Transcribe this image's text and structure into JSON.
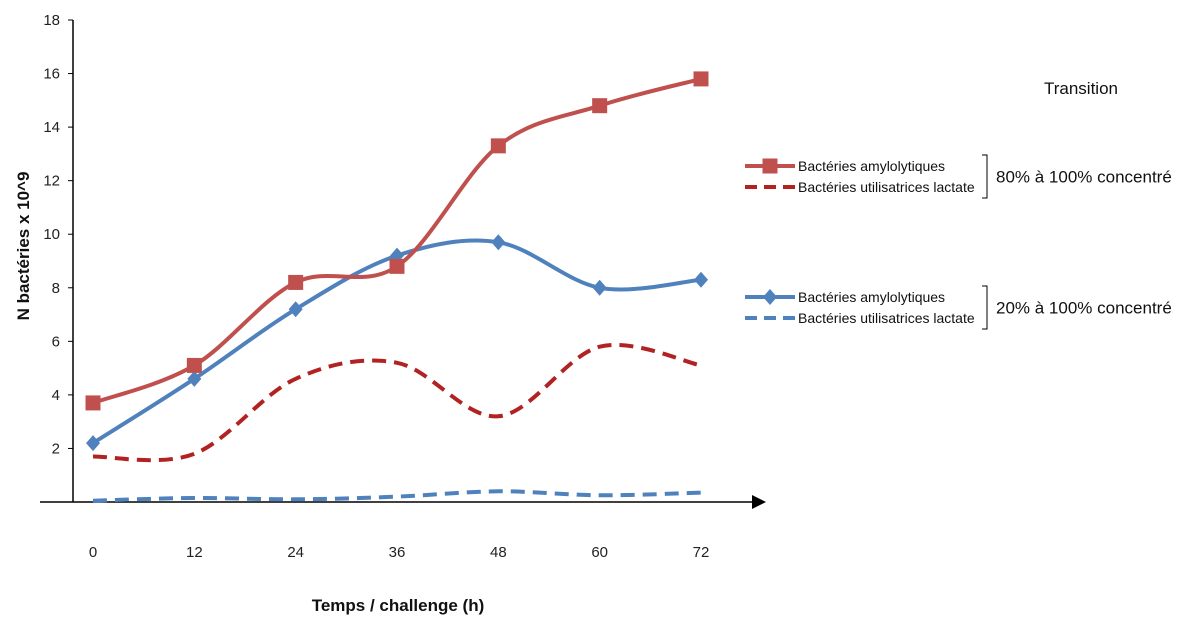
{
  "chart_data": {
    "type": "line",
    "xlabel": "Temps / challenge (h)",
    "ylabel": "N bactéries x 10^9",
    "x": [
      0,
      12,
      24,
      36,
      48,
      60,
      72
    ],
    "x_tick_labels": [
      "0",
      "12",
      "24",
      "36",
      "48",
      "60",
      "72"
    ],
    "y_ticks": [
      2,
      4,
      6,
      8,
      10,
      12,
      14,
      16,
      18
    ],
    "y_tick_labels": [
      "2",
      "4",
      "6",
      "8",
      "10",
      "12",
      "14",
      "16",
      "18"
    ],
    "ylim": [
      0,
      18
    ],
    "xlim": [
      0,
      72
    ],
    "grid": false,
    "legend_title": "Transition",
    "legend_groups": [
      {
        "label": "80% à 100% concentré",
        "series": [
          0,
          1
        ]
      },
      {
        "label": "20% à 100% concentré",
        "series": [
          2,
          3
        ]
      }
    ],
    "series": [
      {
        "name": "Bactéries amylolytiques",
        "color": "#c0504d",
        "marker": "square",
        "dashed": false,
        "values": [
          3.7,
          5.1,
          8.2,
          8.8,
          13.3,
          14.8,
          15.8
        ]
      },
      {
        "name": "Bactéries utilisatrices  lactate",
        "color": "#b22222",
        "marker": "none",
        "dashed": true,
        "values": [
          1.7,
          1.8,
          4.6,
          5.2,
          3.2,
          5.8,
          5.1
        ]
      },
      {
        "name": "Bactéries amylolytiques",
        "color": "#4f81bd",
        "marker": "diamond",
        "dashed": false,
        "values": [
          2.2,
          4.6,
          7.2,
          9.2,
          9.7,
          8.0,
          8.3
        ]
      },
      {
        "name": "Bactéries utilisatrices  lactate",
        "color": "#4f81bd",
        "marker": "none",
        "dashed": true,
        "values": [
          0.05,
          0.15,
          0.1,
          0.2,
          0.4,
          0.25,
          0.35
        ]
      }
    ]
  }
}
